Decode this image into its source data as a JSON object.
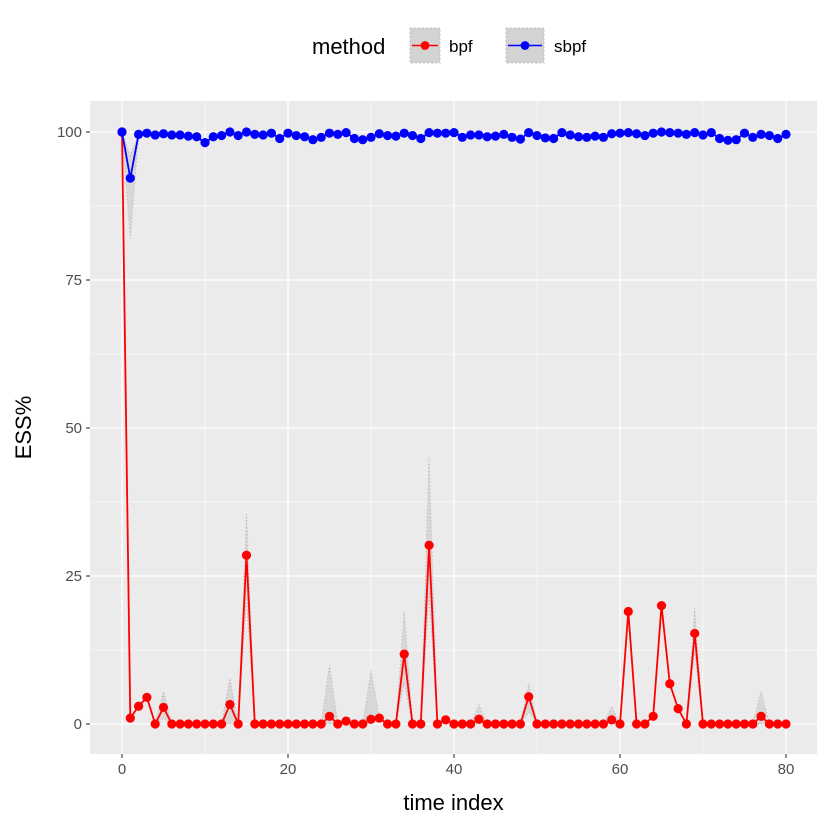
{
  "chart_data": {
    "type": "line",
    "title": "",
    "xlabel": "time index",
    "ylabel": "ESS%",
    "xlim": [
      0,
      80
    ],
    "ylim": [
      0,
      100
    ],
    "x_ticks": [
      0,
      20,
      40,
      60,
      80
    ],
    "y_ticks": [
      0,
      25,
      50,
      75,
      100
    ],
    "grid": true,
    "legend": {
      "title": "method",
      "placement": "top"
    },
    "series": [
      {
        "name": "bpf",
        "color": "#ff0000",
        "values": [
          100,
          1,
          3,
          4.5,
          0,
          2.8,
          0,
          0,
          0,
          0,
          0,
          0,
          0,
          3.3,
          0,
          28.5,
          0,
          0,
          0,
          0,
          0,
          0,
          0,
          0,
          0,
          1.3,
          0,
          0.5,
          0,
          0,
          0.8,
          1,
          0,
          0,
          11.8,
          0,
          0,
          30.2,
          0,
          0.7,
          0,
          0,
          0,
          0.8,
          0,
          0,
          0,
          0,
          0,
          4.6,
          0,
          0,
          0,
          0,
          0,
          0,
          0,
          0,
          0,
          0.7,
          0,
          19,
          0,
          0,
          1.3,
          20,
          6.8,
          2.6,
          0,
          15.3,
          0,
          0,
          0,
          0,
          0,
          0,
          0,
          1.3,
          0,
          0,
          0
        ],
        "band_upper": [
          100,
          1,
          3,
          4.5,
          0,
          5.5,
          0,
          0,
          0,
          0,
          0,
          0,
          0,
          7.7,
          0,
          35.5,
          0,
          0,
          0,
          0,
          0,
          0,
          0,
          0,
          0,
          10,
          0,
          0.5,
          0,
          0,
          9,
          1,
          0,
          0,
          19,
          0,
          0,
          45,
          0,
          0.7,
          0,
          0,
          0,
          3.2,
          0,
          0,
          0,
          0,
          0,
          6.8,
          0,
          0,
          0,
          0,
          0,
          0,
          0,
          0,
          0,
          3,
          0,
          19,
          0,
          0,
          1.3,
          20,
          6.8,
          2.6,
          0,
          19.5,
          0,
          0,
          0,
          0,
          0,
          0,
          0,
          5.5,
          0,
          0,
          0
        ],
        "band_lower": [
          100,
          1,
          3,
          4.5,
          0,
          1,
          0,
          0,
          0,
          0,
          0,
          0,
          0,
          0,
          0,
          21,
          0,
          0,
          0,
          0,
          0,
          0,
          0,
          0,
          0,
          0,
          0,
          0.5,
          0,
          0,
          0,
          1,
          0,
          0,
          7,
          0,
          0,
          22,
          0,
          0.7,
          0,
          0,
          0,
          0,
          0,
          0,
          0,
          0,
          0,
          2,
          0,
          0,
          0,
          0,
          0,
          0,
          0,
          0,
          0,
          0,
          0,
          19,
          0,
          0,
          1.3,
          20,
          6.8,
          2.6,
          0,
          12,
          0,
          0,
          0,
          0,
          0,
          0,
          0,
          0,
          0,
          0,
          0
        ]
      },
      {
        "name": "sbpf",
        "color": "#0000ff",
        "values": [
          100,
          92.2,
          99.6,
          99.8,
          99.5,
          99.7,
          99.5,
          99.5,
          99.3,
          99.2,
          98.2,
          99.2,
          99.4,
          100,
          99.4,
          100,
          99.6,
          99.5,
          99.8,
          98.9,
          99.8,
          99.4,
          99.2,
          98.7,
          99.1,
          99.8,
          99.6,
          99.9,
          98.9,
          98.7,
          99.1,
          99.7,
          99.4,
          99.3,
          99.8,
          99.4,
          98.9,
          99.9,
          99.8,
          99.8,
          99.9,
          99.1,
          99.5,
          99.5,
          99.2,
          99.3,
          99.6,
          99.1,
          98.8,
          99.9,
          99.4,
          99,
          98.9,
          99.9,
          99.5,
          99.2,
          99.1,
          99.3,
          99.1,
          99.7,
          99.8,
          99.9,
          99.7,
          99.4,
          99.8,
          100,
          99.9,
          99.8,
          99.6,
          99.9,
          99.5,
          99.9,
          98.9,
          98.6,
          98.7,
          99.8,
          99.1,
          99.6,
          99.4,
          98.9,
          99.6
        ],
        "band_upper": [
          100,
          96,
          99.6,
          99.8,
          99.5,
          99.7,
          99.5,
          99.5,
          99.3,
          99.2,
          98.2,
          99.2,
          99.4,
          100,
          99.4,
          100,
          99.6,
          99.5,
          99.8,
          98.9,
          99.8,
          99.4,
          99.2,
          98.7,
          99.1,
          99.8,
          99.6,
          99.9,
          98.9,
          98.7,
          99.1,
          99.7,
          99.4,
          99.3,
          99.8,
          99.4,
          98.9,
          99.9,
          99.8,
          99.8,
          99.9,
          99.1,
          99.5,
          99.5,
          99.2,
          99.3,
          99.6,
          99.1,
          98.8,
          99.9,
          99.4,
          99,
          98.9,
          99.9,
          99.5,
          99.2,
          99.1,
          99.3,
          99.1,
          99.7,
          99.8,
          99.9,
          99.7,
          99.4,
          99.8,
          100,
          99.9,
          99.8,
          99.6,
          99.9,
          99.5,
          99.9,
          98.9,
          98.6,
          98.7,
          99.8,
          99.1,
          99.6,
          99.4,
          98.9,
          99.6
        ],
        "band_lower": [
          100,
          82,
          99.6,
          99.8,
          99.5,
          99.7,
          99.5,
          99.5,
          99.3,
          99.2,
          98.2,
          99.2,
          99.4,
          100,
          99.4,
          100,
          99.6,
          99.5,
          99.8,
          98.9,
          99.8,
          99.4,
          99.2,
          98.7,
          99.1,
          99.8,
          99.6,
          99.9,
          98.9,
          98.7,
          99.1,
          99.7,
          99.4,
          99.3,
          99.8,
          99.4,
          98.9,
          99.9,
          99.8,
          99.8,
          99.9,
          99.1,
          99.5,
          99.5,
          99.2,
          99.3,
          99.6,
          99.1,
          98.8,
          99.9,
          99.4,
          99,
          98.9,
          99.9,
          99.5,
          99.2,
          99.1,
          99.3,
          99.1,
          99.7,
          99.8,
          99.9,
          99.7,
          99.4,
          99.8,
          100,
          99.9,
          99.8,
          99.6,
          99.9,
          99.5,
          99.9,
          98.9,
          98.6,
          98.7,
          99.8,
          99.1,
          99.6,
          99.4,
          98.9,
          99.6
        ]
      }
    ]
  },
  "colors": {
    "panel_background": "#ebebeb",
    "grid_major": "#ffffff",
    "ribbon_fill": "#d3d3d3",
    "ribbon_dots": "#c9a9b4"
  }
}
